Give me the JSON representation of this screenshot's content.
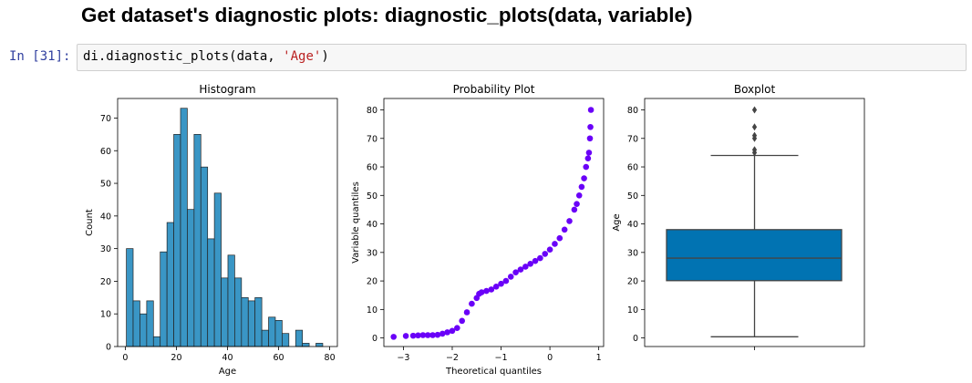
{
  "notebook": {
    "heading": "Get dataset's diagnostic plots: diagnostic_plots(data, variable)",
    "prompt": "In [31]:",
    "code": {
      "prefix": "di.diagnostic_plots(data, ",
      "string": "'Age'",
      "suffix": ")"
    }
  },
  "colors": {
    "hist_fill": "#3a96c5",
    "hist_edge": "#222222",
    "qq_points": "#6a00f8",
    "box_fill": "#0173b2",
    "box_line": "#444444",
    "prompt": "#303F9F",
    "string": "#BA2121"
  },
  "chart_data": [
    {
      "type": "bar",
      "title": "Histogram",
      "xlabel": "Age",
      "ylabel": "Count",
      "xlim": [
        -3,
        83
      ],
      "ylim": [
        0,
        76
      ],
      "xticks": [
        0,
        20,
        40,
        60,
        80
      ],
      "yticks": [
        0,
        10,
        20,
        30,
        40,
        50,
        60,
        70
      ],
      "bin_start": 0.42,
      "bin_width": 2.65,
      "values": [
        30,
        14,
        10,
        14,
        3,
        29,
        38,
        65,
        73,
        42,
        65,
        55,
        33,
        47,
        21,
        28,
        21,
        15,
        14,
        15,
        5,
        9,
        8,
        4,
        0,
        5,
        1,
        0,
        1
      ]
    },
    {
      "type": "scatter",
      "title": "Probability Plot",
      "xlabel": "Theoretical quantiles",
      "ylabel": "Variable quantiles",
      "xlim": [
        -3.4,
        1.1
      ],
      "ylim": [
        -3,
        84
      ],
      "xticks": [
        -3,
        -2,
        -1,
        0,
        1
      ],
      "xtick_labels": [
        "−3",
        "−2",
        "−1",
        "0",
        "1"
      ],
      "yticks": [
        0,
        10,
        20,
        30,
        40,
        50,
        60,
        70,
        80
      ],
      "x": [
        -3.2,
        -2.95,
        -2.8,
        -2.7,
        -2.6,
        -2.5,
        -2.4,
        -2.3,
        -2.2,
        -2.1,
        -2.0,
        -1.9,
        -1.8,
        -1.7,
        -1.6,
        -1.5,
        -1.45,
        -1.4,
        -1.3,
        -1.2,
        -1.1,
        -1.0,
        -0.9,
        -0.8,
        -0.7,
        -0.6,
        -0.5,
        -0.4,
        -0.3,
        -0.2,
        -0.1,
        0.0,
        0.1,
        0.2,
        0.3,
        0.4,
        0.5,
        0.55,
        0.6,
        0.65,
        0.7,
        0.74,
        0.78,
        0.8,
        0.82,
        0.83,
        0.84
      ],
      "y": [
        0.4,
        0.7,
        0.8,
        0.9,
        1.0,
        1.0,
        1.0,
        1.1,
        1.5,
        2.0,
        2.5,
        3.5,
        6,
        9,
        12,
        14,
        15.5,
        16,
        16.5,
        17,
        18,
        19,
        20,
        21.5,
        23,
        24,
        25,
        26,
        27,
        28,
        29.5,
        31,
        33,
        35,
        38,
        41,
        45,
        47,
        50,
        53,
        56,
        60,
        63,
        65,
        70,
        74,
        80
      ]
    },
    {
      "type": "box",
      "title": "Boxplot",
      "xlabel": "",
      "ylabel": "Age",
      "ylim": [
        -3,
        84
      ],
      "yticks": [
        0,
        10,
        20,
        30,
        40,
        50,
        60,
        70,
        80
      ],
      "whisker_low": 0.42,
      "q1": 20.1,
      "median": 28,
      "q3": 38,
      "whisker_high": 64,
      "outliers": [
        65,
        66,
        70,
        71,
        74,
        80
      ]
    }
  ]
}
